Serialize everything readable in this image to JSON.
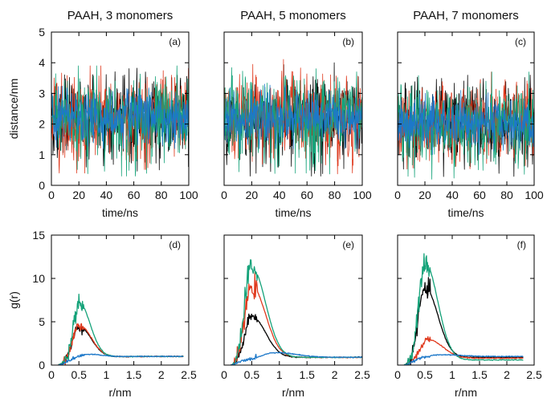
{
  "colors": {
    "black": "#000000",
    "red": "#e03a1e",
    "green": "#16a37a",
    "blue": "#1d78c9"
  },
  "chart_data": [
    {
      "type": "line",
      "panel": "(a)",
      "title": "PAAH, 3 monomers",
      "xlabel": "time/ns",
      "ylabel": "distance/nm",
      "xlim": [
        0,
        100
      ],
      "ylim": [
        0,
        5
      ],
      "xticks": [
        "0",
        "20",
        "40",
        "60",
        "80",
        "100"
      ],
      "yticks": [
        "0",
        "1",
        "2",
        "3",
        "4",
        "5"
      ],
      "series": [
        {
          "color": "black",
          "mean": 2.2,
          "range": [
            0.4,
            3.9
          ]
        },
        {
          "color": "red",
          "mean": 2.2,
          "range": [
            0.4,
            3.9
          ]
        },
        {
          "color": "green",
          "mean": 2.2,
          "range": [
            0.3,
            3.9
          ]
        },
        {
          "color": "blue",
          "mean": 2.2,
          "range": [
            1.2,
            3.3
          ]
        }
      ]
    },
    {
      "type": "line",
      "panel": "(b)",
      "title": "PAAH, 5 monomers",
      "xlabel": "time/ns",
      "ylabel": "",
      "xlim": [
        0,
        100
      ],
      "ylim": [
        0,
        5
      ],
      "xticks": [
        "0",
        "20",
        "40",
        "60",
        "80",
        "100"
      ],
      "yticks": [],
      "series": [
        {
          "color": "black",
          "mean": 2.2,
          "range": [
            0.3,
            4.0
          ]
        },
        {
          "color": "red",
          "mean": 2.2,
          "range": [
            0.3,
            4.2
          ]
        },
        {
          "color": "green",
          "mean": 2.2,
          "range": [
            0.3,
            4.1
          ]
        },
        {
          "color": "blue",
          "mean": 2.2,
          "range": [
            1.2,
            3.3
          ]
        }
      ]
    },
    {
      "type": "line",
      "panel": "(c)",
      "title": "PAAH, 7 monomers",
      "xlabel": "time/ns",
      "ylabel": "",
      "xlim": [
        0,
        100
      ],
      "ylim": [
        0,
        5
      ],
      "xticks": [
        "0",
        "20",
        "40",
        "60",
        "80",
        "100"
      ],
      "yticks": [],
      "series": [
        {
          "color": "black",
          "mean": 2.0,
          "range": [
            0.2,
            3.6
          ]
        },
        {
          "color": "red",
          "mean": 2.0,
          "range": [
            0.3,
            3.7
          ]
        },
        {
          "color": "green",
          "mean": 2.0,
          "range": [
            0.2,
            3.7
          ]
        },
        {
          "color": "blue",
          "mean": 2.0,
          "range": [
            1.0,
            3.1
          ]
        }
      ]
    },
    {
      "type": "line",
      "panel": "(d)",
      "title": "",
      "xlabel": "r/nm",
      "ylabel": "g(r)",
      "xlim": [
        0,
        2.5
      ],
      "ylim": [
        0,
        15
      ],
      "xticks": [
        "0",
        "0.5",
        "1",
        "1.5",
        "2",
        "2.5"
      ],
      "yticks": [
        "0",
        "5",
        "10",
        "15"
      ],
      "series": [
        {
          "color": "black",
          "peak_r": 0.5,
          "peak_g": 4.7,
          "width": 0.28,
          "tail": 1.0,
          "r_end": 2.4
        },
        {
          "color": "red",
          "peak_r": 0.5,
          "peak_g": 4.9,
          "width": 0.28,
          "tail": 1.0,
          "r_end": 2.4
        },
        {
          "color": "green",
          "peak_r": 0.5,
          "peak_g": 7.5,
          "width": 0.26,
          "tail": 1.0,
          "r_end": 2.4
        },
        {
          "color": "blue",
          "peak_r": 0.6,
          "peak_g": 1.4,
          "width": 0.35,
          "tail": 1.0,
          "r_end": 2.4
        }
      ]
    },
    {
      "type": "line",
      "panel": "(e)",
      "title": "",
      "xlabel": "r/nm",
      "ylabel": "",
      "xlim": [
        0,
        2.5
      ],
      "ylim": [
        0,
        15
      ],
      "xticks": [
        "0",
        "0.5",
        "1",
        "1.5",
        "2",
        "2.5"
      ],
      "yticks": [],
      "series": [
        {
          "color": "black",
          "peak_r": 0.5,
          "peak_g": 5.8,
          "width": 0.32,
          "tail": 0.9,
          "r_end": 2.5
        },
        {
          "color": "red",
          "peak_r": 0.5,
          "peak_g": 9.3,
          "width": 0.32,
          "tail": 0.9,
          "r_end": 2.5
        },
        {
          "color": "green",
          "peak_r": 0.5,
          "peak_g": 11.5,
          "width": 0.32,
          "tail": 0.9,
          "r_end": 2.5
        },
        {
          "color": "blue",
          "peak_r": 0.9,
          "peak_g": 1.5,
          "width": 0.5,
          "tail": 0.9,
          "r_end": 2.5
        }
      ]
    },
    {
      "type": "line",
      "panel": "(f)",
      "title": "",
      "xlabel": "r/nm",
      "ylabel": "",
      "xlim": [
        0,
        2.5
      ],
      "ylim": [
        0,
        15
      ],
      "xticks": [
        "0",
        "0.5",
        "1",
        "1.5",
        "2",
        "2.5"
      ],
      "yticks": [],
      "series": [
        {
          "color": "black",
          "peak_r": 0.5,
          "peak_g": 9.2,
          "width": 0.3,
          "tail": 0.9,
          "r_end": 2.3
        },
        {
          "color": "red",
          "peak_r": 0.55,
          "peak_g": 3.1,
          "width": 0.35,
          "tail": 0.8,
          "r_end": 2.3
        },
        {
          "color": "green",
          "peak_r": 0.5,
          "peak_g": 12.0,
          "width": 0.3,
          "tail": 0.6,
          "r_end": 2.3
        },
        {
          "color": "blue",
          "peak_r": 0.7,
          "peak_g": 1.3,
          "width": 0.5,
          "tail": 1.0,
          "r_end": 2.3
        }
      ]
    }
  ]
}
